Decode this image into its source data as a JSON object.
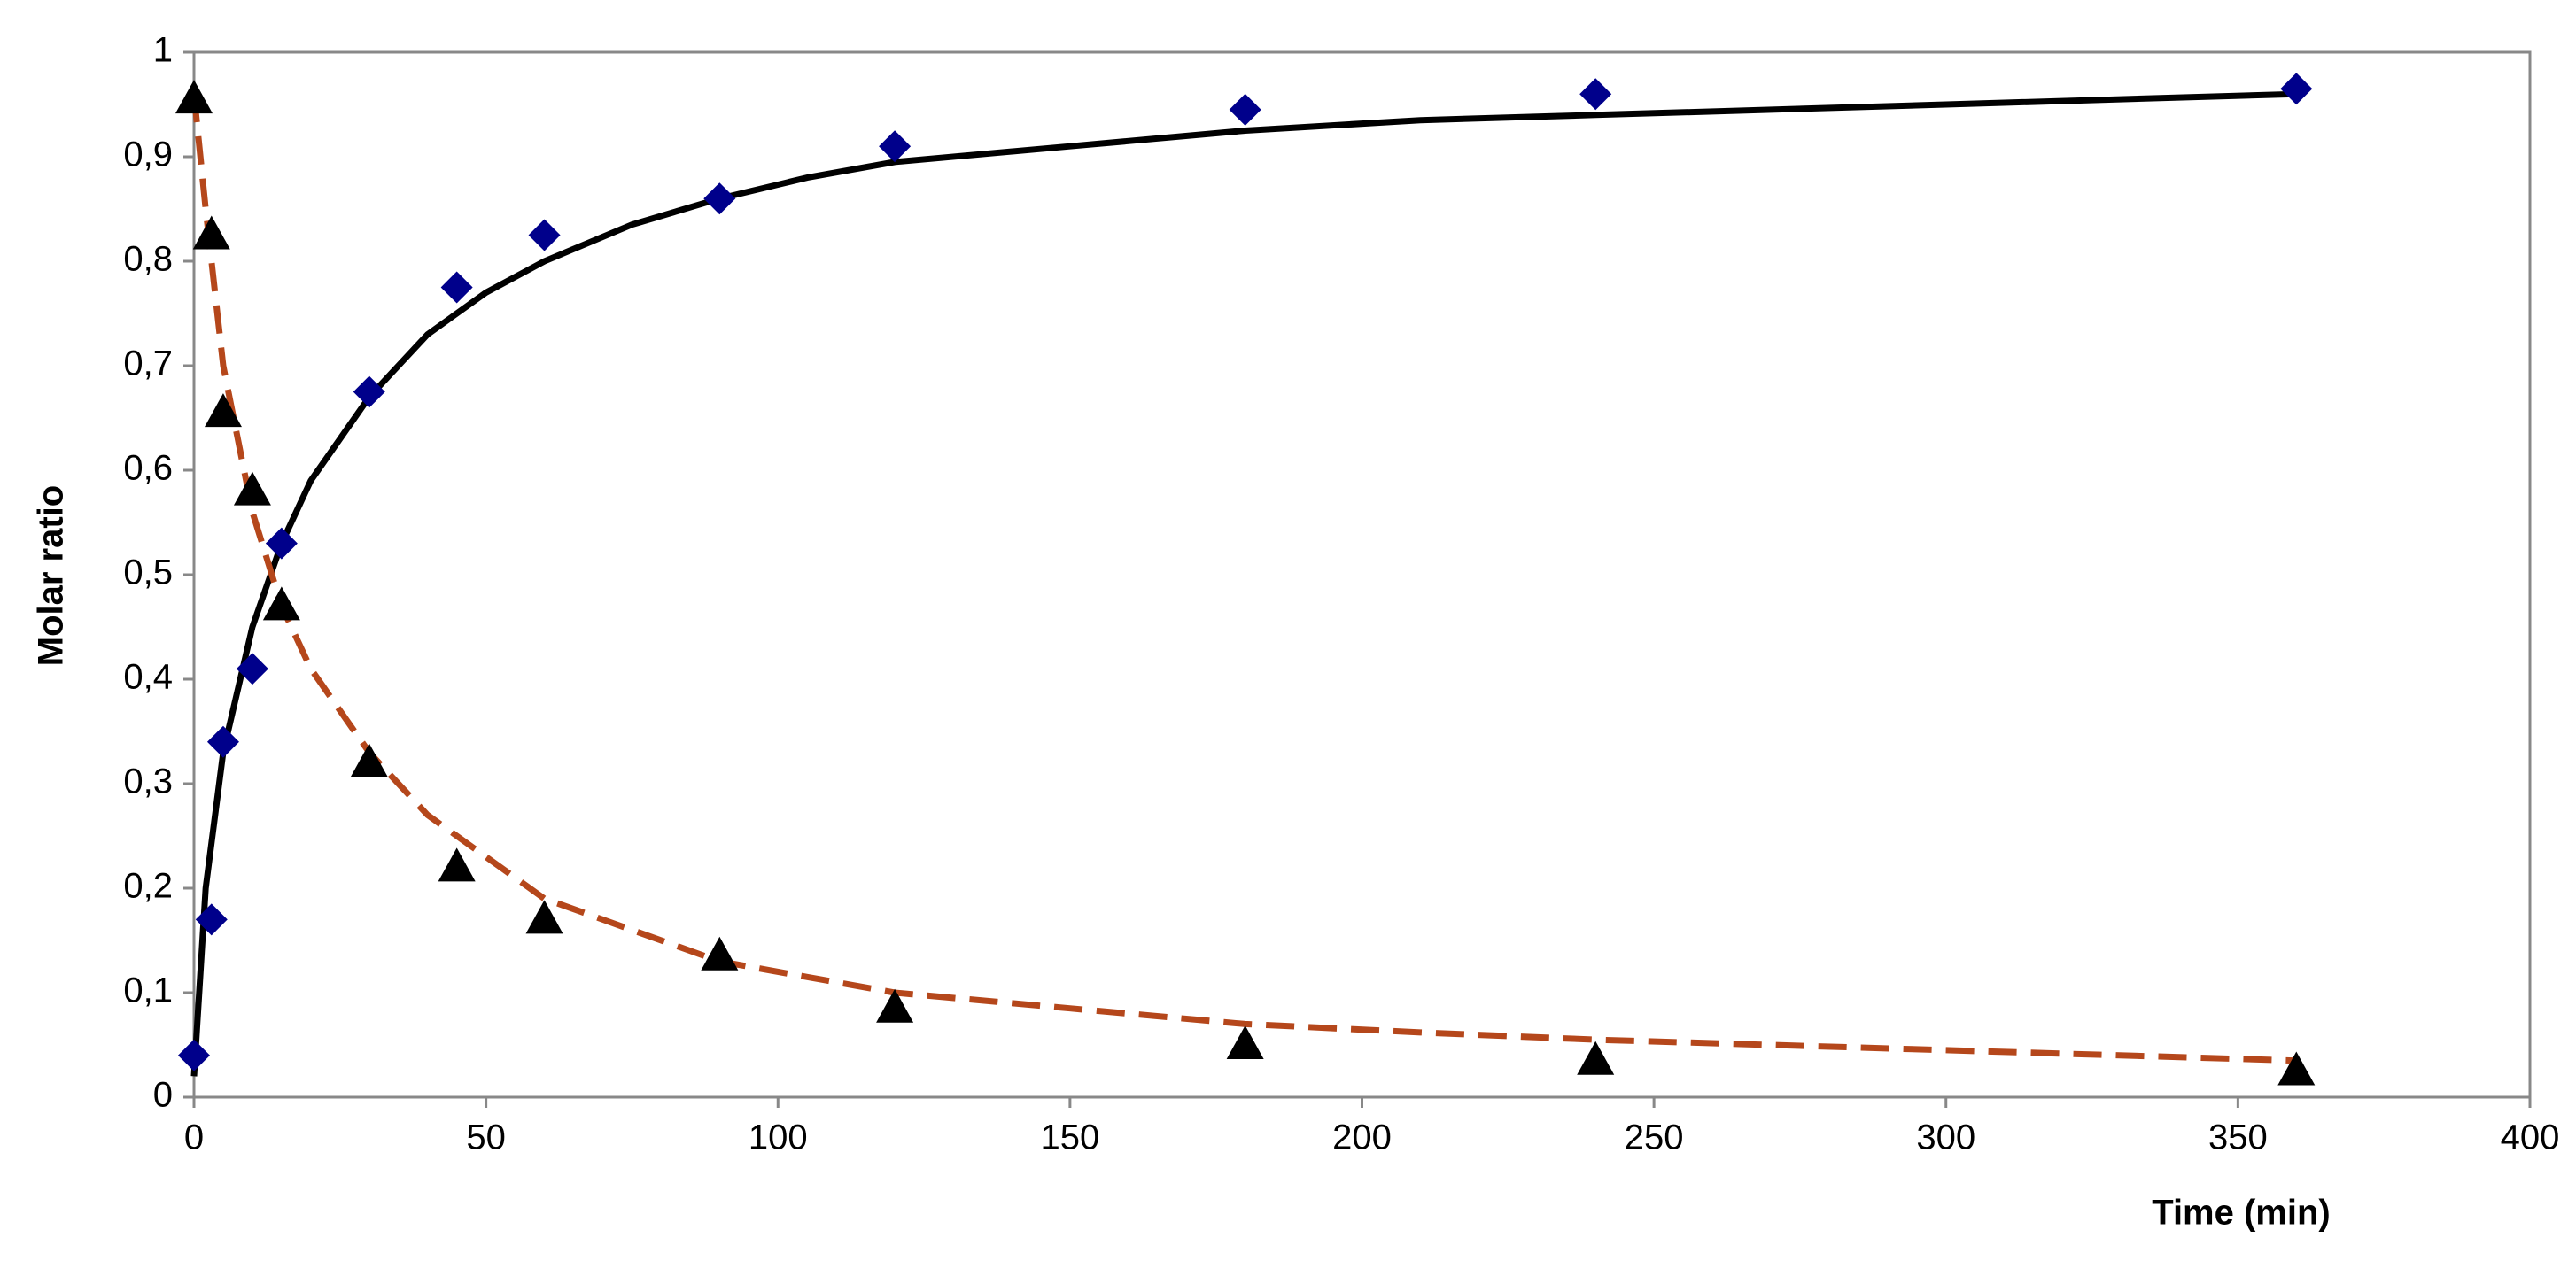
{
  "chart_data": {
    "type": "line",
    "x_label": "Time (min)",
    "y_label": "Molar ratio",
    "xlim": [
      0,
      400
    ],
    "xticks": [
      0,
      50,
      100,
      150,
      200,
      250,
      300,
      350,
      400
    ],
    "ylim": [
      0,
      1
    ],
    "yticks": [
      0,
      {
        "value": 0.1,
        "label": "0,1"
      },
      {
        "value": 0.2,
        "label": "0,2"
      },
      {
        "value": 0.3,
        "label": "0,3"
      },
      {
        "value": 0.4,
        "label": "0,4"
      },
      {
        "value": 0.5,
        "label": "0,5"
      },
      {
        "value": 0.6,
        "label": "0,6"
      },
      {
        "value": 0.7,
        "label": "0,7"
      },
      {
        "value": 0.8,
        "label": "0,8"
      },
      {
        "value": 0.9,
        "label": "0,9"
      },
      1
    ],
    "grid": false,
    "series": [
      {
        "type": "line",
        "color": "#000000",
        "dash": false,
        "x": [
          0,
          2,
          5,
          10,
          15,
          20,
          30,
          40,
          50,
          60,
          75,
          90,
          105,
          120,
          150,
          180,
          210,
          240,
          300,
          360
        ],
        "values": [
          0.02,
          0.2,
          0.33,
          0.45,
          0.53,
          0.59,
          0.67,
          0.73,
          0.77,
          0.8,
          0.835,
          0.86,
          0.88,
          0.895,
          0.91,
          0.925,
          0.935,
          0.94,
          0.95,
          0.96
        ]
      },
      {
        "type": "line",
        "color": "#b5471b",
        "dash": true,
        "x": [
          0,
          2,
          5,
          10,
          15,
          20,
          30,
          40,
          50,
          60,
          75,
          90,
          105,
          120,
          150,
          180,
          210,
          240,
          300,
          360
        ],
        "values": [
          0.96,
          0.85,
          0.7,
          0.56,
          0.47,
          0.41,
          0.33,
          0.27,
          0.23,
          0.19,
          0.16,
          0.13,
          0.115,
          0.1,
          0.085,
          0.07,
          0.062,
          0.055,
          0.045,
          0.035
        ]
      },
      {
        "type": "scatter",
        "marker": "diamond",
        "color": "#00008b",
        "x": [
          0,
          3,
          5,
          10,
          15,
          30,
          45,
          60,
          90,
          120,
          180,
          240,
          360
        ],
        "values": [
          0.04,
          0.17,
          0.34,
          0.41,
          0.53,
          0.675,
          0.775,
          0.825,
          0.86,
          0.91,
          0.945,
          0.96,
          0.965
        ]
      },
      {
        "type": "scatter",
        "marker": "triangle",
        "color": "#000000",
        "x": [
          0,
          3,
          5,
          10,
          15,
          30,
          45,
          60,
          90,
          120,
          180,
          240,
          360
        ],
        "values": [
          0.955,
          0.825,
          0.655,
          0.58,
          0.47,
          0.32,
          0.22,
          0.17,
          0.135,
          0.085,
          0.05,
          0.035,
          0.025
        ]
      }
    ]
  }
}
